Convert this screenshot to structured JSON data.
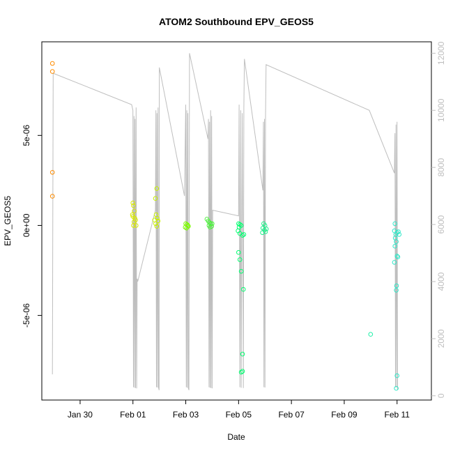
{
  "chart_data": {
    "type": "scatter",
    "title": "ATOM2 Southbound EPV_GEOS5",
    "xlabel": "Date",
    "ylabel": "EPV_GEOS5",
    "x_ticks": [
      {
        "x": 1.0,
        "label": "Jan 30"
      },
      {
        "x": 3.0,
        "label": "Feb 01"
      },
      {
        "x": 5.0,
        "label": "Feb 03"
      },
      {
        "x": 7.0,
        "label": "Feb 05"
      },
      {
        "x": 9.0,
        "label": "Feb 07"
      },
      {
        "x": 11.0,
        "label": "Feb 09"
      },
      {
        "x": 13.0,
        "label": "Feb 11"
      }
    ],
    "xlim": [
      -0.45,
      14.3
    ],
    "ylim": [
      -9.7e-06,
      1.02e-05
    ],
    "y_ticks": [
      {
        "v": -5e-06,
        "label": "-5e-06"
      },
      {
        "v": 0,
        "label": "0e+00"
      },
      {
        "v": 5e-06,
        "label": "5e-06"
      }
    ],
    "y2lim": [
      -150,
      12400
    ],
    "y2_ticks": [
      {
        "v": 0,
        "label": "0"
      },
      {
        "v": 2000,
        "label": "2000"
      },
      {
        "v": 4000,
        "label": "4000"
      },
      {
        "v": 6000,
        "label": "6000"
      },
      {
        "v": 8000,
        "label": "8000"
      },
      {
        "v": 10000,
        "label": "10000"
      },
      {
        "v": 12000,
        "label": "12000"
      }
    ],
    "grid": false,
    "points": [
      {
        "x": -0.05,
        "y": 9e-06,
        "color": "#FF8C00"
      },
      {
        "x": -0.05,
        "y": 8.55e-06,
        "color": "#FF8C00"
      },
      {
        "x": -0.05,
        "y": 2.95e-06,
        "color": "#FF8C00"
      },
      {
        "x": -0.05,
        "y": 1.62e-06,
        "color": "#FF8C00"
      },
      {
        "x": 3.0,
        "y": 1.25e-06,
        "color": "#D8E800"
      },
      {
        "x": 3.02,
        "y": 1.1e-06,
        "color": "#D8E800"
      },
      {
        "x": 3.05,
        "y": 8e-07,
        "color": "#D8E800"
      },
      {
        "x": 3.0,
        "y": 5e-07,
        "color": "#D8E800"
      },
      {
        "x": 3.07,
        "y": 4e-07,
        "color": "#D8E800"
      },
      {
        "x": 3.1,
        "y": 3e-07,
        "color": "#D8E800"
      },
      {
        "x": 3.04,
        "y": 2e-07,
        "color": "#D8E800"
      },
      {
        "x": 3.02,
        "y": 0.0,
        "color": "#D8E800"
      },
      {
        "x": 3.12,
        "y": 0.0,
        "color": "#D8E800"
      },
      {
        "x": 2.98,
        "y": 6e-07,
        "color": "#D8E800"
      },
      {
        "x": 3.9,
        "y": 2.05e-06,
        "color": "#C8F000"
      },
      {
        "x": 3.85,
        "y": 1.5e-06,
        "color": "#C8F000"
      },
      {
        "x": 3.88,
        "y": 6e-07,
        "color": "#C8F000"
      },
      {
        "x": 3.92,
        "y": 4e-07,
        "color": "#C8F000"
      },
      {
        "x": 3.82,
        "y": 3e-07,
        "color": "#C8F000"
      },
      {
        "x": 3.95,
        "y": 2.5e-07,
        "color": "#C8F000"
      },
      {
        "x": 3.86,
        "y": 1e-07,
        "color": "#C8F000"
      },
      {
        "x": 3.9,
        "y": -5e-08,
        "color": "#C8F000"
      },
      {
        "x": 5.0,
        "y": 1e-07,
        "color": "#7CFC00"
      },
      {
        "x": 5.05,
        "y": 5e-08,
        "color": "#7CFC00"
      },
      {
        "x": 5.1,
        "y": -5e-08,
        "color": "#7CFC00"
      },
      {
        "x": 4.98,
        "y": -1e-07,
        "color": "#7CFC00"
      },
      {
        "x": 5.03,
        "y": -1.5e-07,
        "color": "#7CFC00"
      },
      {
        "x": 5.08,
        "y": 0.0,
        "color": "#7CFC00"
      },
      {
        "x": 5.8,
        "y": 3.5e-07,
        "color": "#50F040"
      },
      {
        "x": 5.85,
        "y": 2.5e-07,
        "color": "#50F040"
      },
      {
        "x": 5.9,
        "y": 1.5e-07,
        "color": "#50F040"
      },
      {
        "x": 5.95,
        "y": 1e-07,
        "color": "#50F040"
      },
      {
        "x": 5.88,
        "y": 0.0,
        "color": "#50F040"
      },
      {
        "x": 5.98,
        "y": -5e-08,
        "color": "#50F040"
      },
      {
        "x": 6.0,
        "y": 1e-07,
        "color": "#50F040"
      },
      {
        "x": 5.92,
        "y": -1e-07,
        "color": "#50F040"
      },
      {
        "x": 7.0,
        "y": 1e-07,
        "color": "#00FF70"
      },
      {
        "x": 7.05,
        "y": 5e-08,
        "color": "#00FF70"
      },
      {
        "x": 7.1,
        "y": 0.0,
        "color": "#00FF70"
      },
      {
        "x": 7.02,
        "y": -1e-07,
        "color": "#00FF70"
      },
      {
        "x": 6.98,
        "y": -3e-07,
        "color": "#00FF70"
      },
      {
        "x": 7.05,
        "y": -4.5e-07,
        "color": "#00FF70"
      },
      {
        "x": 7.15,
        "y": -5.5e-07,
        "color": "#00FF70"
      },
      {
        "x": 7.2,
        "y": -5e-07,
        "color": "#00FF70"
      },
      {
        "x": 7.0,
        "y": -1.5e-06,
        "color": "#00FF70"
      },
      {
        "x": 7.05,
        "y": -1.9e-06,
        "color": "#00FF70"
      },
      {
        "x": 7.1,
        "y": -2.55e-06,
        "color": "#00FF70"
      },
      {
        "x": 7.18,
        "y": -3.55e-06,
        "color": "#00FF70"
      },
      {
        "x": 7.15,
        "y": -7.15e-06,
        "color": "#00FF70"
      },
      {
        "x": 7.1,
        "y": -8.15e-06,
        "color": "#00FF70"
      },
      {
        "x": 7.15,
        "y": -8.1e-06,
        "color": "#00FF70"
      },
      {
        "x": 7.95,
        "y": 1e-07,
        "color": "#20F08C"
      },
      {
        "x": 8.0,
        "y": 0.0,
        "color": "#20F08C"
      },
      {
        "x": 7.92,
        "y": -1.5e-07,
        "color": "#20F08C"
      },
      {
        "x": 7.98,
        "y": -2.5e-07,
        "color": "#20F08C"
      },
      {
        "x": 8.02,
        "y": -3.5e-07,
        "color": "#20F08C"
      },
      {
        "x": 7.9,
        "y": -4e-07,
        "color": "#20F08C"
      },
      {
        "x": 8.05,
        "y": -2e-07,
        "color": "#20F08C"
      },
      {
        "x": 12.0,
        "y": -6.05e-06,
        "color": "#20F0A8"
      },
      {
        "x": 12.92,
        "y": 1e-07,
        "color": "#30E8C8"
      },
      {
        "x": 12.9,
        "y": -3e-07,
        "color": "#30E8C8"
      },
      {
        "x": 12.95,
        "y": -5e-07,
        "color": "#30E8C8"
      },
      {
        "x": 13.0,
        "y": -4e-07,
        "color": "#30E8C8"
      },
      {
        "x": 13.05,
        "y": -3.5e-07,
        "color": "#30E8C8"
      },
      {
        "x": 13.08,
        "y": -5e-07,
        "color": "#30E8C8"
      },
      {
        "x": 12.93,
        "y": -7e-07,
        "color": "#30E8C8"
      },
      {
        "x": 12.97,
        "y": -9e-07,
        "color": "#30E8C8"
      },
      {
        "x": 12.92,
        "y": -1.15e-06,
        "color": "#30E8C8"
      },
      {
        "x": 13.0,
        "y": -1.7e-06,
        "color": "#30E8C8"
      },
      {
        "x": 13.03,
        "y": -1.75e-06,
        "color": "#30E8C8"
      },
      {
        "x": 12.9,
        "y": -2.05e-06,
        "color": "#30E8C8"
      },
      {
        "x": 12.98,
        "y": -3.35e-06,
        "color": "#30E8C8"
      },
      {
        "x": 12.97,
        "y": -3.6e-06,
        "color": "#30E8C8"
      },
      {
        "x": 13.0,
        "y": -8.35e-06,
        "color": "#30E8C8"
      },
      {
        "x": 12.97,
        "y": -9.05e-06,
        "color": "#30E8C8"
      }
    ],
    "altitude_series": {
      "color": "#bebebe",
      "x": [
        -0.05,
        -0.02,
        2.95,
        3.0,
        3.02,
        3.04,
        3.06,
        3.08,
        3.1,
        3.12,
        3.14,
        3.16,
        3.18,
        3.85,
        3.87,
        3.89,
        3.91,
        3.93,
        3.95,
        3.97,
        3.99,
        4.0,
        4.95,
        5.0,
        5.02,
        5.04,
        5.06,
        5.08,
        5.1,
        5.12,
        5.14,
        5.84,
        5.86,
        5.88,
        5.9,
        5.92,
        5.94,
        5.96,
        5.98,
        6.0,
        6.02,
        7.0,
        7.02,
        7.05,
        7.08,
        7.1,
        7.14,
        7.18,
        7.2,
        7.22,
        7.92,
        7.94,
        7.96,
        7.98,
        8.0,
        8.02,
        8.04,
        11.95,
        12.9,
        12.92,
        12.94,
        12.96,
        12.98,
        13.0,
        13.02
      ],
      "y": [
        750,
        11300,
        10200,
        10000,
        300,
        9800,
        280,
        9700,
        270,
        10100,
        260,
        4100,
        4000,
        6500,
        10000,
        300,
        9900,
        290,
        10100,
        280,
        200,
        11500,
        7000,
        10200,
        300,
        10000,
        280,
        9900,
        260,
        200,
        12000,
        9000,
        9700,
        300,
        9600,
        280,
        10000,
        270,
        9800,
        260,
        6500,
        6300,
        10200,
        300,
        10000,
        280,
        9900,
        270,
        10100,
        11800,
        7200,
        9600,
        300,
        9700,
        290,
        9800,
        11600,
        10000,
        7800,
        9200,
        300,
        9500,
        280,
        9600,
        200
      ]
    }
  }
}
